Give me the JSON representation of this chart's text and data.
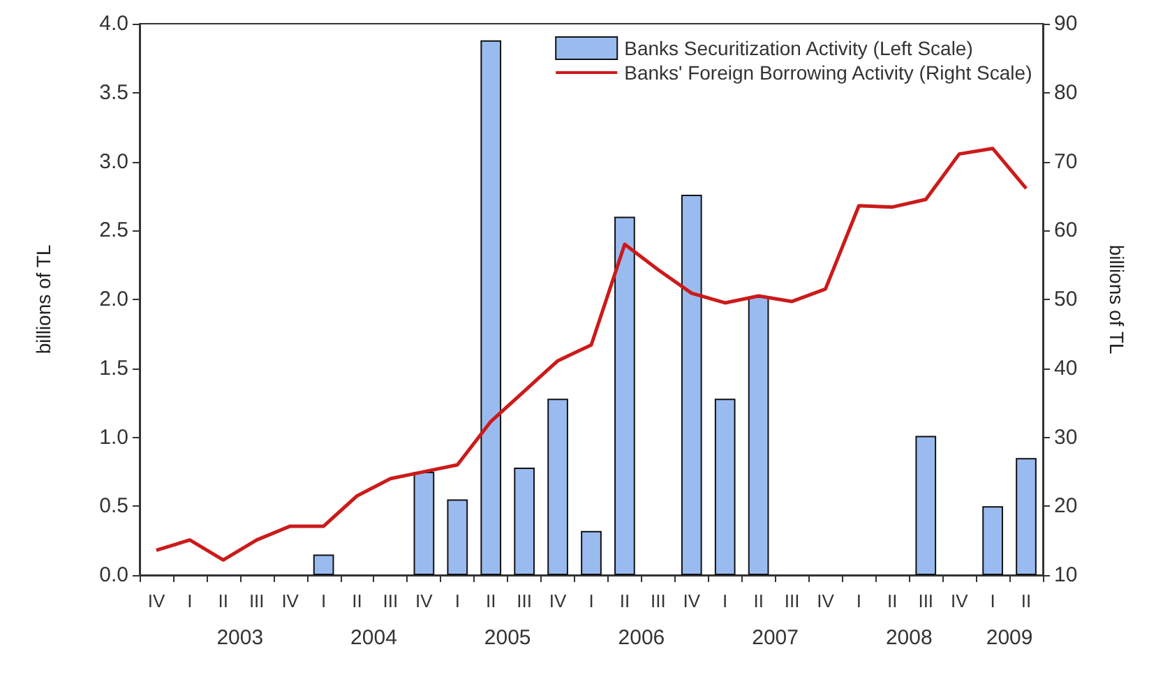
{
  "chart_data": {
    "type": "bar",
    "categories": [
      "IV",
      "I",
      "II",
      "III",
      "IV",
      "I",
      "II",
      "III",
      "IV",
      "I",
      "II",
      "III",
      "IV",
      "I",
      "II",
      "III",
      "IV",
      "I",
      "II",
      "III",
      "IV",
      "I",
      "II",
      "III",
      "IV",
      "I",
      "II"
    ],
    "ylabel": "billions of TL",
    "y2label": "billions of TL",
    "ylim": [
      0,
      4
    ],
    "yticks": [
      {
        "value": 0,
        "label": "0.0"
      },
      {
        "value": 0.5,
        "label": "0.5"
      },
      {
        "value": 1,
        "label": "1.0"
      },
      {
        "value": 1.5,
        "label": "1.5"
      },
      {
        "value": 2,
        "label": "2.0"
      },
      {
        "value": 2.5,
        "label": "2.5"
      },
      {
        "value": 3,
        "label": "3.0"
      },
      {
        "value": 3.5,
        "label": "3.5"
      },
      {
        "value": 4,
        "label": "4.0"
      }
    ],
    "y2lim": [
      10,
      90
    ],
    "y2ticks": [
      10,
      20,
      30,
      40,
      50,
      60,
      70,
      80,
      90
    ],
    "legend": "top right",
    "grid": false,
    "series": [
      {
        "name": "Banks Securitization Activity (Left Scale)",
        "color": "#99bbf0",
        "values": [
          0,
          0,
          0,
          0,
          0,
          0.15,
          0,
          0,
          0.75,
          0.55,
          3.88,
          0.78,
          1.28,
          0.32,
          2.6,
          0,
          2.76,
          1.28,
          2.02,
          0,
          0,
          0,
          0,
          1.01,
          0,
          0.5,
          0.85
        ]
      },
      {
        "name": "Banks' Foreign Borrowing Activity (Right Scale)",
        "type": "line",
        "axis": "y2",
        "color": "#cc1a1a",
        "values": [
          13.6,
          15.1,
          12.2,
          15.1,
          17.1,
          17.1,
          21.5,
          24.0,
          25.0,
          26.0,
          32.3,
          36.7,
          41.1,
          43.4,
          58.0,
          54.3,
          50.9,
          49.5,
          50.5,
          49.7,
          51.5,
          63.6,
          63.4,
          64.5,
          71.1,
          71.9,
          66.1
        ]
      }
    ],
    "annotations": [
      "2003",
      "2004",
      "2005",
      "2006",
      "2007",
      "2008",
      "2009"
    ]
  }
}
